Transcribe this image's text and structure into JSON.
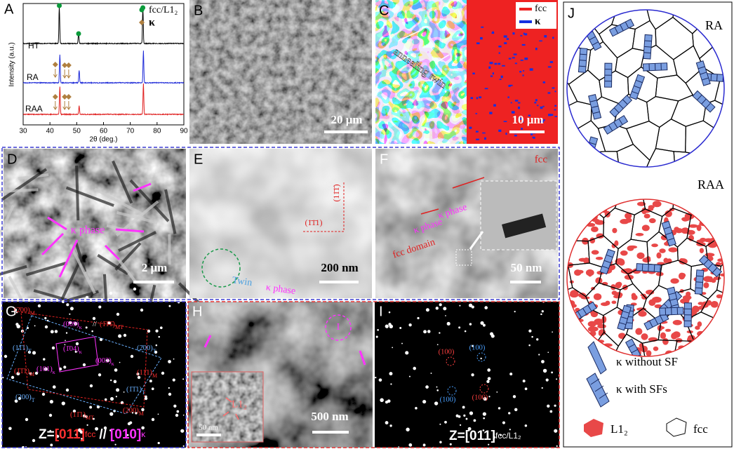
{
  "A": {
    "label": "A",
    "legend": [
      "fcc/L1₂",
      "κ"
    ],
    "curves": [
      "HT",
      "RA",
      "RAA"
    ],
    "ylabel": "Intensity (a.u.)",
    "xlabel": "2θ (deg.)",
    "xticks": [
      30,
      40,
      50,
      60,
      70,
      80,
      90
    ]
  },
  "B": {
    "label": "B",
    "scale": "20 μm"
  },
  "C": {
    "label": "C",
    "annotation": "annealing twin",
    "legend": [
      "fcc",
      "κ"
    ],
    "scale": "10 μm"
  },
  "D": {
    "label": "D",
    "annotation": "κ phase",
    "scale": "2 μm"
  },
  "E": {
    "label": "E",
    "planes": [
      "(11̄1̄)",
      "(1̄1̄1)"
    ],
    "twin": "Twin",
    "phase": "κ phase",
    "scale": "200 nm"
  },
  "F": {
    "label": "F",
    "fcc": "fcc",
    "phases": [
      "κ phase",
      "κ phase"
    ],
    "domain": "fcc domain",
    "scale": "50 nm"
  },
  "G": {
    "label": "G",
    "spots": [
      {
        "text": "(2̄00)",
        "sub": "M"
      },
      {
        "text": "(009)",
        "sub": "κ"
      },
      {
        "text": "//"
      },
      {
        "text": "(1̄1̄1̄)",
        "sub": "MT"
      },
      {
        "text": "(11̄1)",
        "sub": "T"
      },
      {
        "text": "(1̄04)",
        "sub": "κ"
      },
      {
        "text": "(2̄00)",
        "sub": "T"
      },
      {
        "text": "(101)",
        "sub": "κ"
      },
      {
        "text": "(003)",
        "sub": "κ"
      },
      {
        "text": "(1̄1̄1)",
        "sub": "M"
      },
      {
        "text": "(11̄1)",
        "sub": "M"
      },
      {
        "text": "(1̄1̄1)",
        "sub": "T"
      },
      {
        "text": "(200)",
        "sub": "T"
      },
      {
        "text": "(11̄1)",
        "sub": "MT"
      },
      {
        "text": "(200)",
        "sub": "M"
      }
    ],
    "zone": {
      "prefix": "Z=",
      "a": "[011]",
      "a_sub": "fcc",
      "sep": "//",
      "b": "[010]",
      "b_sub": "κ"
    }
  },
  "H": {
    "label": "H",
    "circle": "I",
    "inset": "L1₂",
    "inset_scale": "50 nm",
    "scale": "500 nm"
  },
  "I": {
    "label": "I",
    "spots": [
      "(100)",
      "(100)",
      "(100)",
      "(100)"
    ],
    "zone": {
      "prefix": "Z=[011]",
      "sub": "fcc/L1₂"
    }
  },
  "J": {
    "label": "J",
    "top": "RA",
    "bottom": "RAA",
    "legend": [
      "κ without SF",
      "κ with SFs",
      "L1₂",
      "fcc"
    ]
  }
}
